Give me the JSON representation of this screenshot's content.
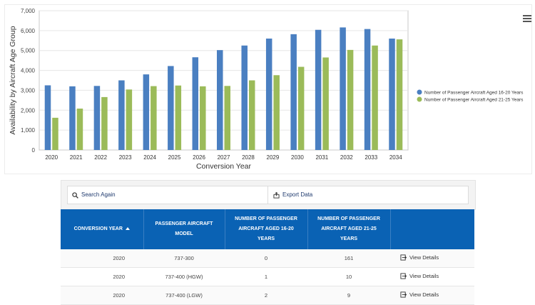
{
  "chart_data": {
    "type": "bar",
    "xlabel": "Conversion Year",
    "ylabel": "Availability by Aircraft Age Group",
    "ylim": [
      0,
      7000
    ],
    "yticks": [
      "0",
      "1,000",
      "2,000",
      "3,000",
      "4,000",
      "5,000",
      "6,000",
      "7,000"
    ],
    "ytick_values": [
      0,
      1000,
      2000,
      3000,
      4000,
      5000,
      6000,
      7000
    ],
    "categories": [
      "2020",
      "2021",
      "2022",
      "2023",
      "2024",
      "2025",
      "2026",
      "2027",
      "2028",
      "2029",
      "2030",
      "2031",
      "2032",
      "2033",
      "2034"
    ],
    "series": [
      {
        "name": "Number of Passenger Aircraft Aged 16-20 Years",
        "color": "#4a7fc1",
        "values": [
          3250,
          3200,
          3220,
          3500,
          3800,
          4220,
          4660,
          5020,
          5250,
          5600,
          5820,
          6040,
          6160,
          6080,
          5600
        ]
      },
      {
        "name": "Number of Passenger Aircraft Aged 21-25 Years",
        "color": "#9bbb59",
        "values": [
          1620,
          2080,
          2660,
          3040,
          3210,
          3240,
          3200,
          3220,
          3500,
          3760,
          4180,
          4650,
          5030,
          5250,
          5560
        ]
      }
    ],
    "grid": true,
    "legend_position": "right"
  },
  "menu_icon": "hamburger-menu-icon",
  "search": {
    "search_again_label": "Search Again",
    "export_label": "Export Data",
    "search_icon": "search-icon",
    "export_icon": "export-icon"
  },
  "table": {
    "headers": {
      "year": "CONVERSION YEAR",
      "model": "PASSENGER AIRCRAFT MODEL",
      "aged_16_20": "NUMBER OF PASSENGER AIRCRAFT AGED 16-20 YEARS",
      "aged_21_25": "NUMBER OF PASSENGER AIRCRAFT AGED 21-25 YEARS"
    },
    "sort_indicator": "sort-ascending-icon",
    "view_details_label": "View Details",
    "rows": [
      {
        "year": "2020",
        "model": "737-300",
        "aged_16_20": "0",
        "aged_21_25": "161"
      },
      {
        "year": "2020",
        "model": "737-400 (HGW)",
        "aged_16_20": "1",
        "aged_21_25": "10"
      },
      {
        "year": "2020",
        "model": "737-400 (LGW)",
        "aged_16_20": "2",
        "aged_21_25": "9"
      }
    ]
  }
}
